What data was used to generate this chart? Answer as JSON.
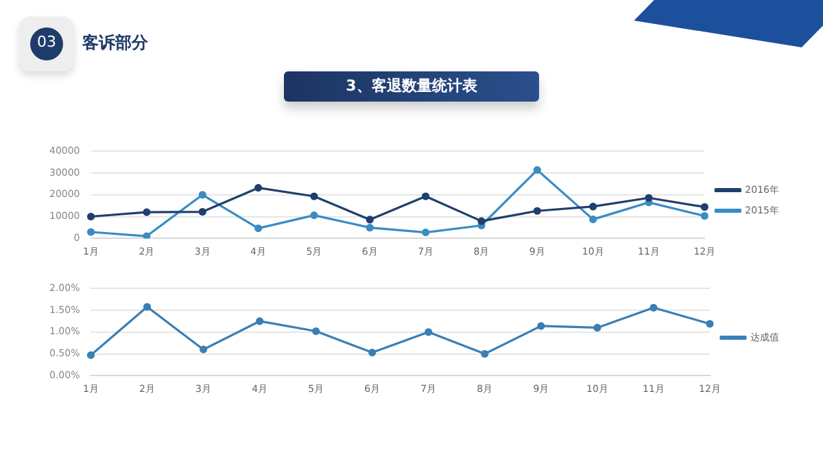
{
  "chart_data": [
    {
      "type": "line",
      "title": "3、客退数量统计表",
      "annotations": [
        "03",
        "客诉部分"
      ],
      "categories": [
        "1月",
        "2月",
        "3月",
        "4月",
        "5月",
        "6月",
        "7月",
        "8月",
        "9月",
        "10月",
        "11月",
        "12月"
      ],
      "series": [
        {
          "name": "2016年",
          "color": "#1f3f6e",
          "values": [
            10000,
            12000,
            12200,
            23200,
            19300,
            8600,
            19300,
            7900,
            12600,
            14600,
            18600,
            14400
          ]
        },
        {
          "name": "2015年",
          "color": "#3a8cc4",
          "values": [
            2900,
            1000,
            20000,
            4600,
            10600,
            4900,
            2700,
            5900,
            31400,
            8700,
            16500,
            10300
          ]
        }
      ],
      "ylim": [
        0,
        40000
      ],
      "yticks": [
        0,
        10000,
        20000,
        30000,
        40000
      ],
      "grid": "y",
      "legend": "right",
      "marker": "circle",
      "line_style": "solid"
    },
    {
      "type": "line",
      "categories": [
        "1月",
        "2月",
        "3月",
        "4月",
        "5月",
        "6月",
        "7月",
        "8月",
        "9月",
        "10月",
        "11月",
        "12月"
      ],
      "series": [
        {
          "name": "达成值",
          "color": "#3a7fb5",
          "values": [
            0.47,
            1.58,
            0.6,
            1.25,
            1.02,
            0.53,
            1.0,
            0.5,
            1.14,
            1.1,
            1.56,
            1.19
          ]
        }
      ],
      "ylim": [
        0,
        2
      ],
      "yticks": [
        {
          "value": 0,
          "label": "0.00%"
        },
        {
          "value": 0.5,
          "label": "0.50%"
        },
        {
          "value": 1,
          "label": "1.00%"
        },
        {
          "value": 1.5,
          "label": "1.50%"
        },
        {
          "value": 2,
          "label": "2.00%"
        }
      ],
      "grid": "y",
      "legend": "right",
      "marker": "circle",
      "line_style": "solid"
    }
  ]
}
